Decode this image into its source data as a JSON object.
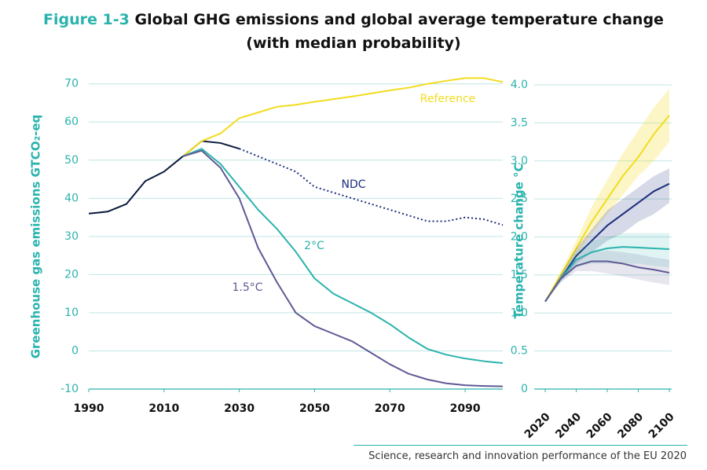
{
  "figure_label": "Figure 1-3",
  "title": "Global GHG emissions and global average temperature change",
  "subtitle": "(with median probability)",
  "footer": "Science, research and innovation performance of the EU 2020",
  "chart_data": [
    {
      "type": "line",
      "y_label": "Greenhouse gas emissions GTCO₂-eq",
      "x": [
        1990,
        1995,
        2000,
        2005,
        2010,
        2015,
        2020,
        2025,
        2030,
        2035,
        2040,
        2045,
        2050,
        2055,
        2060,
        2065,
        2070,
        2075,
        2080,
        2085,
        2090,
        2095,
        2100
      ],
      "xlim": [
        1990,
        2100
      ],
      "xticks": [
        1990,
        2010,
        2030,
        2050,
        2070,
        2090
      ],
      "ylim": [
        -10,
        72
      ],
      "yticks": [
        -10,
        0,
        10,
        20,
        30,
        40,
        50,
        60,
        70
      ],
      "grid": true,
      "series": [
        {
          "color": "#0b1a3c",
          "values": [
            36,
            36.5,
            38.5,
            44.5,
            47,
            51,
            55,
            54.5,
            53,
            null,
            null,
            null,
            null,
            null,
            null,
            null,
            null,
            null,
            null,
            null,
            null,
            null,
            null
          ]
        },
        {
          "name": "NDC",
          "color": "#1c2d7a",
          "dashed": true,
          "values": [
            null,
            null,
            null,
            null,
            null,
            null,
            null,
            null,
            53,
            51,
            49,
            47,
            43,
            41.5,
            40,
            38.5,
            37,
            35.5,
            34,
            34,
            35,
            34.5,
            33
          ]
        },
        {
          "name": "Reference",
          "color": "#f2dc1e",
          "values": [
            null,
            null,
            null,
            null,
            null,
            51,
            55,
            57,
            61,
            62.5,
            64,
            64.5,
            65.3,
            66,
            66.7,
            67.5,
            68.3,
            69,
            70,
            70.8,
            71.5,
            71.5,
            70.5
          ]
        },
        {
          "name": "2°C",
          "color": "#2ab3ad",
          "values": [
            null,
            null,
            null,
            null,
            null,
            51,
            53,
            49,
            43,
            37,
            32,
            26,
            19,
            15,
            12.5,
            10,
            7,
            3.5,
            0.5,
            -1,
            -2,
            -2.7,
            -3.2
          ]
        },
        {
          "name": "1.5°C",
          "color": "#5f5a95",
          "values": [
            null,
            null,
            null,
            null,
            null,
            51,
            52.5,
            48,
            40,
            27,
            18,
            10,
            6.5,
            4.5,
            2.5,
            -0.5,
            -3.5,
            -6,
            -7.5,
            -8.5,
            -9,
            -9.2,
            -9.3
          ]
        }
      ]
    },
    {
      "type": "line",
      "y_label": "Temperature change °C",
      "x": [
        2020,
        2030,
        2040,
        2050,
        2060,
        2070,
        2080,
        2090,
        2100
      ],
      "xlim": [
        2020,
        2100
      ],
      "xticks": [
        2020,
        2040,
        2060,
        2080,
        2100
      ],
      "ylim": [
        0,
        4
      ],
      "yticks": [
        0,
        0.5,
        {
          "value": 1,
          "label": "1.0"
        },
        1.5,
        {
          "value": 2,
          "label": "2.0"
        },
        2.5,
        {
          "value": 3,
          "label": "3.0"
        },
        3.5,
        {
          "value": 4,
          "label": "4.0"
        }
      ],
      "grid": true,
      "series": [
        {
          "color": "#f2dc1e",
          "values": [
            1.15,
            1.5,
            1.85,
            2.2,
            2.5,
            2.8,
            3.05,
            3.35,
            3.6
          ],
          "lower": [
            1.15,
            1.45,
            1.75,
            2.05,
            2.3,
            2.55,
            2.8,
            3.0,
            3.25
          ],
          "upper": [
            1.15,
            1.55,
            1.95,
            2.4,
            2.75,
            3.1,
            3.4,
            3.7,
            3.95
          ]
        },
        {
          "color": "#1c2d7a",
          "values": [
            1.15,
            1.45,
            1.75,
            1.95,
            2.15,
            2.3,
            2.45,
            2.6,
            2.7
          ],
          "lower": [
            1.15,
            1.42,
            1.65,
            1.8,
            1.95,
            2.05,
            2.2,
            2.3,
            2.45
          ],
          "upper": [
            1.15,
            1.5,
            1.85,
            2.1,
            2.35,
            2.5,
            2.65,
            2.8,
            2.9
          ]
        },
        {
          "color": "#2ab3ad",
          "values": [
            1.15,
            1.45,
            1.7,
            1.8,
            1.85,
            1.87,
            1.86,
            1.85,
            1.84
          ],
          "lower": [
            1.15,
            1.4,
            1.6,
            1.65,
            1.65,
            1.65,
            1.65,
            1.62,
            1.6
          ],
          "upper": [
            1.15,
            1.5,
            1.8,
            1.95,
            2.0,
            2.05,
            2.05,
            2.05,
            2.05
          ]
        },
        {
          "color": "#5f5a95",
          "values": [
            1.15,
            1.45,
            1.62,
            1.68,
            1.68,
            1.65,
            1.6,
            1.57,
            1.53
          ],
          "lower": [
            1.15,
            1.4,
            1.55,
            1.55,
            1.52,
            1.48,
            1.44,
            1.4,
            1.37
          ],
          "upper": [
            1.15,
            1.5,
            1.7,
            1.8,
            1.82,
            1.8,
            1.77,
            1.73,
            1.7
          ]
        }
      ]
    }
  ]
}
